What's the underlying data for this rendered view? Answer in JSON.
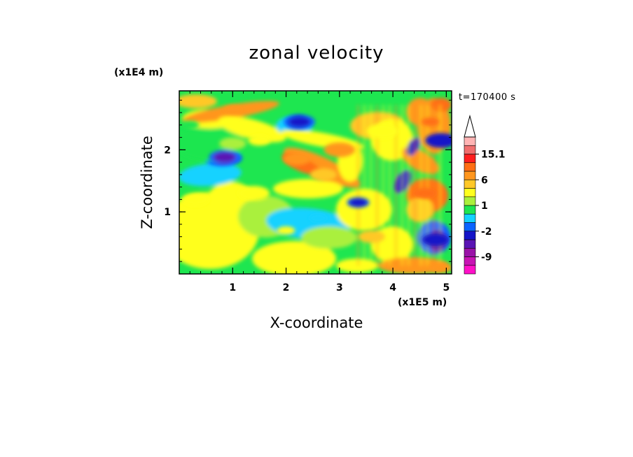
{
  "chart_data": {
    "type": "heatmap",
    "title": "zonal velocity",
    "xlabel": "X-coordinate",
    "ylabel": "Z-coordinate",
    "x_multiplier": "(x1E5 m)",
    "y_multiplier": "(x1E4 m)",
    "time_label": "t=170400 s",
    "xlim": [
      0,
      5.1
    ],
    "ylim": [
      0,
      2.95
    ],
    "x_ticks": [
      {
        "v": 1,
        "label": "1"
      },
      {
        "v": 2,
        "label": "2"
      },
      {
        "v": 3,
        "label": "3"
      },
      {
        "v": 4,
        "label": "4"
      },
      {
        "v": 5,
        "label": "5"
      }
    ],
    "y_ticks": [
      {
        "v": 1,
        "label": "1"
      },
      {
        "v": 2,
        "label": "2"
      }
    ],
    "colorbar": {
      "levels": [
        {
          "color": "#ff10c8",
          "label": ""
        },
        {
          "color": "#c814b4",
          "label": ""
        },
        {
          "color": "#9a12a8",
          "label": "-9"
        },
        {
          "color": "#5a14b4",
          "label": ""
        },
        {
          "color": "#1414c8",
          "label": ""
        },
        {
          "color": "#0a64ff",
          "label": "-2"
        },
        {
          "color": "#14d2ff",
          "label": ""
        },
        {
          "color": "#1ee650",
          "label": ""
        },
        {
          "color": "#aaf03c",
          "label": "1"
        },
        {
          "color": "#ffff1e",
          "label": ""
        },
        {
          "color": "#ffc828",
          "label": ""
        },
        {
          "color": "#ff961e",
          "label": "6"
        },
        {
          "color": "#ff6e14",
          "label": ""
        },
        {
          "color": "#ff1e1e",
          "label": ""
        },
        {
          "color": "#f06e6e",
          "label": "15.1"
        },
        {
          "color": "#ffb4b4",
          "label": ""
        }
      ]
    },
    "features": [
      {
        "x": 0.2,
        "z": 2.4,
        "level": 7
      },
      {
        "x": 0.3,
        "z": 1.2,
        "level": 9
      },
      {
        "x": 0.85,
        "z": 1.88,
        "level": 5
      },
      {
        "x": 0.85,
        "z": 1.88,
        "level": 3
      },
      {
        "x": 1.0,
        "z": 2.65,
        "level": 11
      },
      {
        "x": 1.0,
        "z": 2.1,
        "level": 8
      },
      {
        "x": 1.4,
        "z": 1.3,
        "level": 9
      },
      {
        "x": 1.5,
        "z": 2.15,
        "level": 9
      },
      {
        "x": 2.0,
        "z": 0.7,
        "level": 9
      },
      {
        "x": 2.2,
        "z": 1.85,
        "level": 11
      },
      {
        "x": 2.25,
        "z": 2.45,
        "level": 5
      },
      {
        "x": 2.25,
        "z": 2.45,
        "level": 4
      },
      {
        "x": 2.6,
        "z": 0.9,
        "level": 6
      },
      {
        "x": 2.7,
        "z": 1.6,
        "level": 10
      },
      {
        "x": 3.0,
        "z": 2.0,
        "level": 11
      },
      {
        "x": 3.35,
        "z": 1.15,
        "level": 5
      },
      {
        "x": 3.35,
        "z": 1.15,
        "level": 4
      },
      {
        "x": 3.6,
        "z": 0.6,
        "level": 10
      },
      {
        "x": 3.8,
        "z": 2.3,
        "level": 9
      },
      {
        "x": 4.6,
        "z": 1.3,
        "level": 12
      },
      {
        "x": 4.7,
        "z": 2.45,
        "level": 12
      },
      {
        "x": 4.8,
        "z": 0.55,
        "level": 4
      },
      {
        "x": 4.9,
        "z": 2.15,
        "level": 4
      },
      {
        "x": 4.9,
        "z": 0.1,
        "level": 11
      }
    ]
  }
}
